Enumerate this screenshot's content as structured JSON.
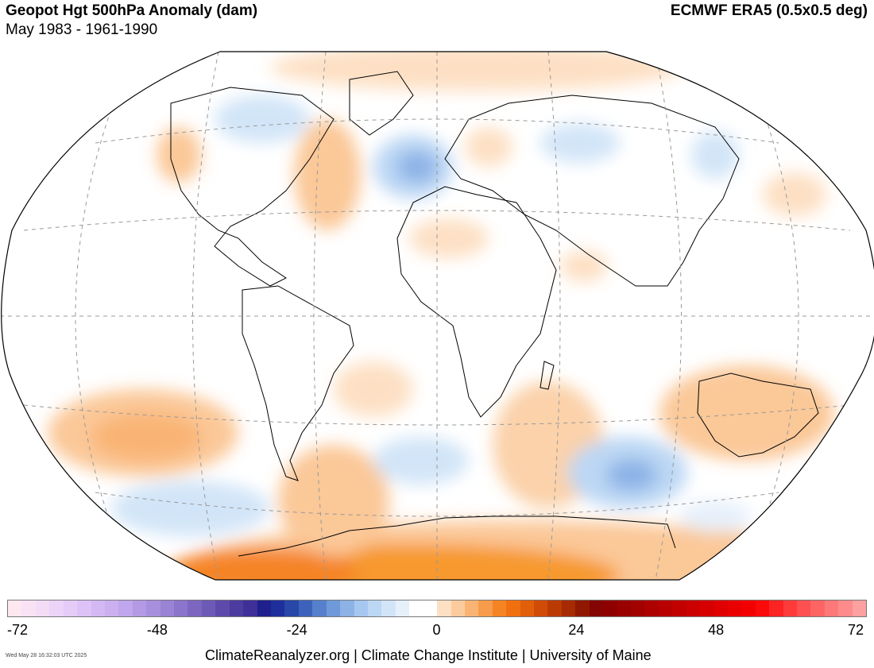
{
  "header": {
    "title": "Geopot Hgt 500hPa Anomaly (dam)",
    "subtitle": "May 1983 - 1961-1990",
    "source": "ECMWF ERA5 (0.5x0.5 deg)"
  },
  "colorbar": {
    "ticks": [
      "-72",
      "-48",
      "-24",
      "0",
      "24",
      "48",
      "72"
    ],
    "colors": [
      "#fde8f0",
      "#f9e2f4",
      "#f3dcf6",
      "#ecd3f8",
      "#e5cbf8",
      "#dcc2f6",
      "#d3b8f3",
      "#cab0ef",
      "#c0a6ec",
      "#b49ae5",
      "#a88fde",
      "#9a82d5",
      "#8b74cb",
      "#7c66c0",
      "#6d59b6",
      "#5d4aab",
      "#4d3ca0",
      "#3f2f98",
      "#1f1f8e",
      "#1e2f9c",
      "#2847a8",
      "#3d62bb",
      "#5680cc",
      "#6f99d9",
      "#8cb2e6",
      "#a6c7ef",
      "#bcd7f4",
      "#d2e5f8",
      "#e6f0fb",
      "#ffffff",
      "#ffffff",
      "#fde0c4",
      "#fbcb9d",
      "#f9b474",
      "#f79c4a",
      "#f58425",
      "#f07010",
      "#e25f0a",
      "#d04c06",
      "#bb3a03",
      "#a62a02",
      "#911800",
      "#850505",
      "#8e0000",
      "#990000",
      "#a30000",
      "#ad0000",
      "#b80000",
      "#c20000",
      "#cc0000",
      "#d60000",
      "#e00000",
      "#ea0000",
      "#f30000",
      "#fa0a0a",
      "#fc2323",
      "#fd3b3b",
      "#fd5151",
      "#fd6565",
      "#fd7878",
      "#fd8b8b",
      "#fda0a0"
    ]
  },
  "footer": {
    "timestamp": "Wed May 28 16:32:03 UTC 2025",
    "credit": "ClimateReanalyzer.org | Climate Change Institute | University of Maine"
  }
}
